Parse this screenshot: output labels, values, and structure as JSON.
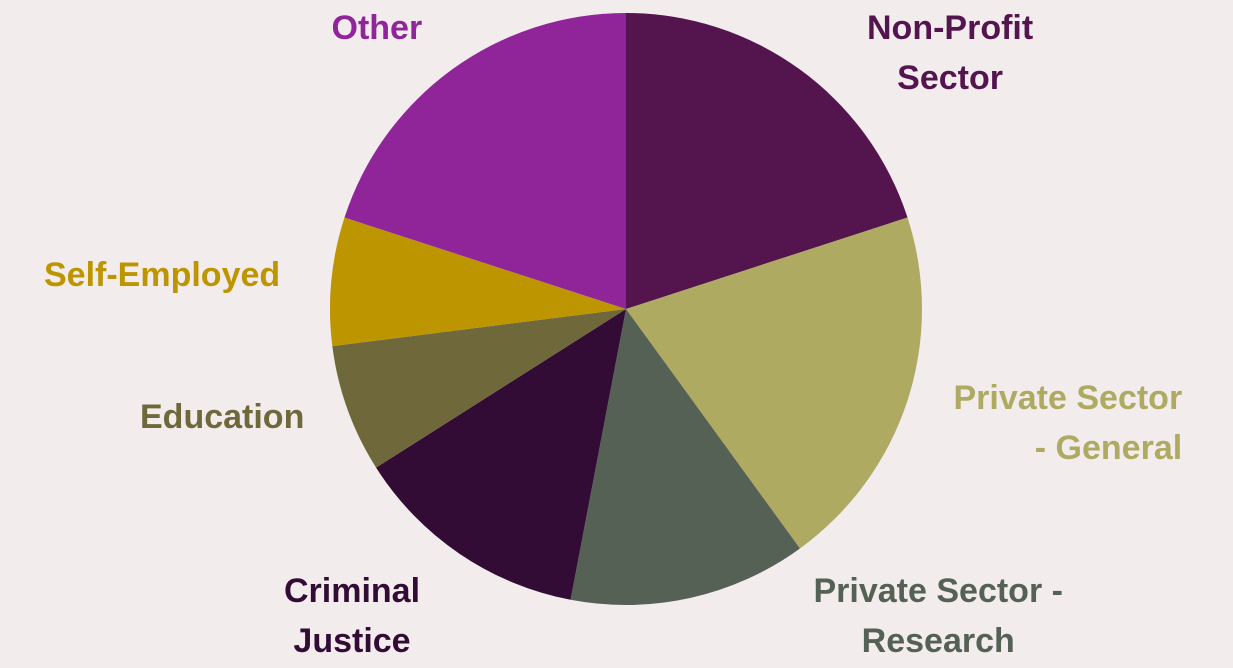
{
  "chart_data": {
    "type": "pie",
    "title": "",
    "start_angle_deg": 0,
    "direction": "clockwise",
    "slices": [
      {
        "label": [
          "Non-Profit",
          "Sector"
        ],
        "value": 20,
        "color": "#54154f",
        "label_color": "#54154f",
        "label_align": "center"
      },
      {
        "label": [
          "Private Sector",
          "- General"
        ],
        "value": 20,
        "color": "#afaa62",
        "label_color": "#afaa62",
        "label_align": "right"
      },
      {
        "label": [
          "Private Sector -",
          "Research"
        ],
        "value": 13,
        "color": "#566156",
        "label_color": "#566156",
        "label_align": "center"
      },
      {
        "label": [
          "Criminal",
          "Justice"
        ],
        "value": 13,
        "color": "#320c35",
        "label_color": "#320c35",
        "label_align": "center"
      },
      {
        "label": [
          "Education"
        ],
        "value": 7,
        "color": "#6e683a",
        "label_color": "#6e683a",
        "label_align": "center"
      },
      {
        "label": [
          "Self-Employed"
        ],
        "value": 7,
        "color": "#bd9500",
        "label_color": "#bd9500",
        "label_align": "center"
      },
      {
        "label": [
          "Other"
        ],
        "value": 20,
        "color": "#8f2598",
        "label_color": "#8f2598",
        "label_align": "center"
      }
    ]
  }
}
